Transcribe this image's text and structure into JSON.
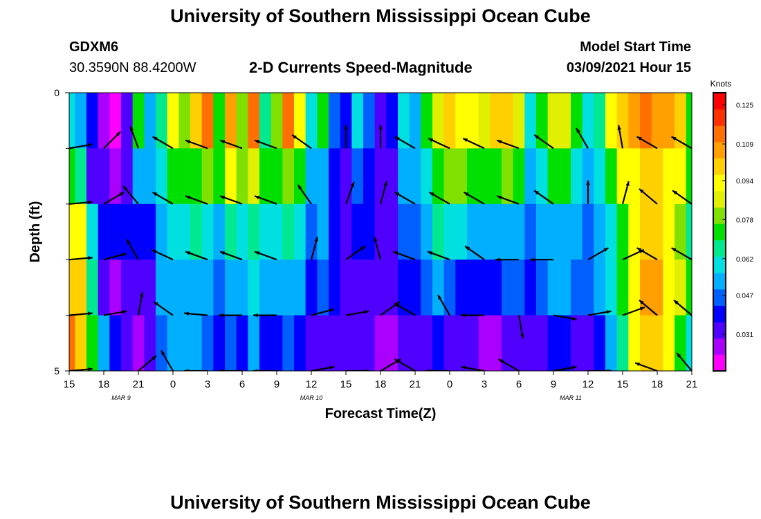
{
  "page": {
    "title_top": "University of Southern Mississippi Ocean Cube",
    "title_bottom": "University of Southern Mississippi Ocean Cube",
    "station_id": "GDXM6",
    "station_coords": "30.3590N 88.4200W",
    "model_start_label": "Model Start Time",
    "model_start_value": "03/09/2021 Hour 15"
  },
  "chart_data": {
    "type": "heatmap",
    "title": "2-D Currents Speed-Magnitude",
    "xlabel": "Forecast Time(Z)",
    "ylabel": "Depth (ft)",
    "units_label": "Knots",
    "x_tick_labels": [
      "15",
      "18",
      "21",
      "0",
      "3",
      "6",
      "9",
      "12",
      "15",
      "18",
      "21",
      "0",
      "3",
      "6",
      "9",
      "12",
      "15",
      "18",
      "21"
    ],
    "date_labels": [
      {
        "text": "MAR 9",
        "tick_index": 1.5
      },
      {
        "text": "MAR 10",
        "tick_index": 7
      },
      {
        "text": "MAR 11",
        "tick_index": 14.5
      }
    ],
    "y_tick_labels": [
      "0",
      "5"
    ],
    "ylim": [
      0,
      5
    ],
    "depth_rows": [
      "0-1",
      "1-2",
      "2-3",
      "3-4",
      "4-5"
    ],
    "colorbar": {
      "ticks": [
        "0.125",
        "0.109",
        "0.094",
        "0.078",
        "0.062",
        "0.047",
        "0.031"
      ],
      "range": [
        0.016,
        0.13
      ],
      "colors": [
        "#ff00ff",
        "#aa00ff",
        "#5000ff",
        "#0000ff",
        "#0060ff",
        "#00b0ff",
        "#00e0e0",
        "#00e890",
        "#00e000",
        "#80e000",
        "#e0f000",
        "#ffff00",
        "#ffd000",
        "#ffa000",
        "#ff7000",
        "#ff3000",
        "#ff0000"
      ]
    },
    "speed_hours_start": 15,
    "speed_hours_step": 1,
    "speeds": [
      [
        0.06,
        0.052,
        0.04,
        0.025,
        0.022,
        0.03,
        0.07,
        0.055,
        0.065,
        0.09,
        0.08,
        0.1,
        0.11,
        0.07,
        0.105,
        0.08,
        0.11,
        0.065,
        0.08,
        0.11,
        0.09,
        0.06,
        0.07,
        0.045,
        0.04,
        0.06,
        0.045,
        0.03,
        0.04,
        0.06,
        0.05,
        0.07,
        0.085,
        0.1,
        0.095,
        0.09,
        0.085,
        0.098,
        0.1,
        0.085,
        0.06,
        0.075,
        0.085,
        0.085,
        0.07,
        0.06,
        0.065,
        0.09,
        0.1,
        0.105,
        0.11,
        0.105,
        0.105,
        0.1,
        0.07,
        0.065,
        0.05,
        0.06,
        0.07,
        0.09,
        0.1,
        0.11,
        0.11
      ],
      [
        0.07,
        0.065,
        0.035,
        0.03,
        0.028,
        0.035,
        0.055,
        0.05,
        0.06,
        0.07,
        0.07,
        0.075,
        0.08,
        0.07,
        0.09,
        0.08,
        0.085,
        0.07,
        0.07,
        0.08,
        0.07,
        0.05,
        0.055,
        0.04,
        0.035,
        0.045,
        0.04,
        0.03,
        0.035,
        0.05,
        0.05,
        0.06,
        0.075,
        0.08,
        0.08,
        0.075,
        0.07,
        0.075,
        0.08,
        0.07,
        0.055,
        0.06,
        0.07,
        0.07,
        0.06,
        0.055,
        0.06,
        0.075,
        0.09,
        0.095,
        0.1,
        0.1,
        0.095,
        0.09,
        0.07,
        0.065,
        0.055,
        0.055,
        0.06,
        0.075,
        0.08,
        0.07,
        0.06
      ],
      [
        0.09,
        0.09,
        0.06,
        0.04,
        0.038,
        0.04,
        0.038,
        0.04,
        0.05,
        0.06,
        0.06,
        0.065,
        0.06,
        0.055,
        0.065,
        0.06,
        0.065,
        0.06,
        0.06,
        0.065,
        0.06,
        0.045,
        0.05,
        0.04,
        0.035,
        0.04,
        0.038,
        0.03,
        0.035,
        0.045,
        0.045,
        0.055,
        0.065,
        0.06,
        0.06,
        0.055,
        0.05,
        0.05,
        0.055,
        0.05,
        0.045,
        0.05,
        0.055,
        0.055,
        0.05,
        0.045,
        0.05,
        0.06,
        0.075,
        0.09,
        0.1,
        0.1,
        0.09,
        0.08,
        0.065,
        0.06,
        0.055,
        0.05,
        0.05,
        0.06,
        0.065,
        0.08,
        0.085
      ],
      [
        0.1,
        0.1,
        0.065,
        0.03,
        0.025,
        0.03,
        0.03,
        0.035,
        0.05,
        0.055,
        0.055,
        0.055,
        0.05,
        0.045,
        0.055,
        0.05,
        0.06,
        0.055,
        0.05,
        0.055,
        0.05,
        0.04,
        0.045,
        0.04,
        0.035,
        0.035,
        0.035,
        0.03,
        0.03,
        0.04,
        0.04,
        0.045,
        0.05,
        0.045,
        0.04,
        0.04,
        0.04,
        0.04,
        0.045,
        0.045,
        0.04,
        0.045,
        0.05,
        0.05,
        0.045,
        0.045,
        0.05,
        0.06,
        0.075,
        0.095,
        0.105,
        0.105,
        0.095,
        0.085,
        0.07,
        0.065,
        0.06,
        0.05,
        0.04,
        0.05,
        0.055,
        0.06,
        0.07
      ],
      [
        0.11,
        0.1,
        0.07,
        0.05,
        0.04,
        0.03,
        0.025,
        0.03,
        0.045,
        0.05,
        0.05,
        0.05,
        0.045,
        0.04,
        0.045,
        0.04,
        0.05,
        0.04,
        0.04,
        0.045,
        0.04,
        0.03,
        0.035,
        0.03,
        0.03,
        0.03,
        0.03,
        0.025,
        0.025,
        0.03,
        0.03,
        0.035,
        0.04,
        0.035,
        0.03,
        0.03,
        0.025,
        0.025,
        0.03,
        0.03,
        0.03,
        0.035,
        0.04,
        0.04,
        0.035,
        0.035,
        0.04,
        0.05,
        0.065,
        0.09,
        0.1,
        0.1,
        0.09,
        0.075,
        0.06,
        0.055,
        0.05,
        0.04,
        0.03,
        0.03,
        0.04,
        0.045,
        0.05
      ]
    ],
    "vector_rows_depth_ft": [
      1,
      2,
      3,
      4,
      5
    ],
    "vector_hours_start": 15,
    "vector_hours_step": 3,
    "vector_directions_deg": [
      [
        80,
        45,
        340,
        300,
        290,
        290,
        290,
        305,
        360,
        360,
        300,
        295,
        295,
        290,
        305,
        330,
        350,
        300,
        300
      ],
      [
        85,
        60,
        320,
        300,
        290,
        290,
        290,
        325,
        20,
        15,
        300,
        300,
        300,
        290,
        305,
        0,
        15,
        310,
        305
      ],
      [
        85,
        75,
        330,
        295,
        290,
        290,
        290,
        15,
        55,
        345,
        290,
        290,
        305,
        270,
        270,
        60,
        65,
        300,
        300
      ],
      [
        85,
        80,
        10,
        305,
        275,
        270,
        270,
        75,
        80,
        55,
        300,
        330,
        270,
        170,
        100,
        80,
        70,
        310,
        310
      ],
      [
        85,
        100,
        50,
        330,
        270,
        270,
        270,
        80,
        90,
        60,
        300,
        270,
        280,
        300,
        80,
        90,
        120,
        290,
        320
      ]
    ]
  }
}
